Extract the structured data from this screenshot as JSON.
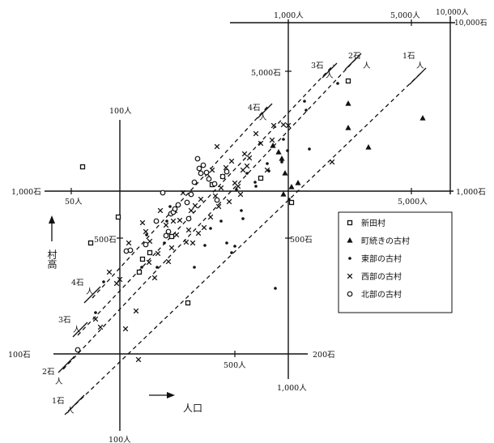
{
  "chart_data": {
    "type": "scatter",
    "axes": {
      "population_ticks": [
        "100人",
        "500人",
        "1,000人",
        "5,000人",
        "10,000人",
        "100人",
        "50人",
        "1,000人",
        "5,000人"
      ],
      "kokudaka_ticks": [
        "100石",
        "500石",
        "1,000石",
        "5,000石",
        "10,000石",
        "100石",
        "200石",
        "500石",
        "1,000石",
        "1,000石"
      ],
      "y_axis_label": "村高",
      "x_axis_label": "人口"
    },
    "ratio_lines": [
      {
        "koku": "1石",
        "per": "人"
      },
      {
        "koku": "2石",
        "per": "人"
      },
      {
        "koku": "3石",
        "per": "人"
      },
      {
        "koku": "4石",
        "per": "人"
      }
    ],
    "legend": [
      {
        "marker": "square",
        "label": "新田村"
      },
      {
        "marker": "triangle",
        "label": "町続きの古村"
      },
      {
        "marker": "dot",
        "label": "東部の古村"
      },
      {
        "marker": "cross",
        "label": "西部の古村"
      },
      {
        "marker": "circle",
        "label": "北部の古村"
      }
    ],
    "series": [
      {
        "name": "新田村",
        "marker": "square",
        "points": [
          [
            102,
            206
          ],
          [
            112,
            300
          ],
          [
            146,
            268
          ],
          [
            172,
            336
          ],
          [
            176,
            320
          ],
          [
            185,
            312
          ],
          [
            212,
            292
          ],
          [
            232,
            374
          ],
          [
            262,
            228
          ],
          [
            322,
            220
          ],
          [
            360,
            250
          ],
          [
            430,
            100
          ]
        ]
      },
      {
        "name": "町続きの古村",
        "marker": "triangle",
        "points": [
          [
            337,
            180
          ],
          [
            344,
            188
          ],
          [
            348,
            196
          ],
          [
            352,
            214
          ],
          [
            350,
            240
          ],
          [
            360,
            231
          ],
          [
            368,
            226
          ],
          [
            430,
            128
          ],
          [
            430,
            158
          ],
          [
            455,
            182
          ],
          [
            522,
            146
          ]
        ]
      },
      {
        "name": "東部の古村",
        "marker": "dot",
        "points": [
          [
            118,
            386
          ],
          [
            128,
            348
          ],
          [
            160,
            308
          ],
          [
            175,
            330
          ],
          [
            181,
            290
          ],
          [
            194,
            330
          ],
          [
            203,
            300
          ],
          [
            206,
            273
          ],
          [
            210,
            255
          ],
          [
            221,
            254
          ],
          [
            240,
            330
          ],
          [
            253,
            303
          ],
          [
            260,
            282
          ],
          [
            273,
            273
          ],
          [
            280,
            300
          ],
          [
            286,
            312
          ],
          [
            290,
            304
          ],
          [
            292,
            234
          ],
          [
            298,
            260
          ],
          [
            300,
            270
          ],
          [
            305,
            214
          ],
          [
            315,
            225
          ],
          [
            316,
            230
          ],
          [
            330,
            202
          ],
          [
            332,
            211
          ],
          [
            340,
            356
          ],
          [
            348,
            200
          ],
          [
            350,
            172
          ],
          [
            355,
            186
          ],
          [
            357,
            246
          ],
          [
            376,
            125
          ],
          [
            378,
            136
          ],
          [
            382,
            184
          ],
          [
            417,
            103
          ]
        ]
      },
      {
        "name": "西部の古村",
        "marker": "cross",
        "points": [
          [
            118,
            394
          ],
          [
            124,
            404
          ],
          [
            135,
            336
          ],
          [
            144,
            350
          ],
          [
            148,
            345
          ],
          [
            155,
            406
          ],
          [
            159,
            300
          ],
          [
            168,
            384
          ],
          [
            171,
            444
          ],
          [
            176,
            275
          ],
          [
            180,
            286
          ],
          [
            184,
            324
          ],
          [
            185,
            298
          ],
          [
            191,
            343
          ],
          [
            195,
            313
          ],
          [
            198,
            260
          ],
          [
            205,
            278
          ],
          [
            208,
            323
          ],
          [
            212,
            306
          ],
          [
            214,
            273
          ],
          [
            216,
            260
          ],
          [
            218,
            290
          ],
          [
            222,
            272
          ],
          [
            226,
            238
          ],
          [
            230,
            299
          ],
          [
            233,
            284
          ],
          [
            236,
            260
          ],
          [
            238,
            300
          ],
          [
            241,
            254
          ],
          [
            245,
            288
          ],
          [
            248,
            246
          ],
          [
            252,
            281
          ],
          [
            256,
            215
          ],
          [
            260,
            268
          ],
          [
            262,
            210
          ],
          [
            266,
            242
          ],
          [
            268,
            181
          ],
          [
            270,
            255
          ],
          [
            273,
            232
          ],
          [
            275,
            218
          ],
          [
            279,
            207
          ],
          [
            283,
            249
          ],
          [
            286,
            199
          ],
          [
            290,
            226
          ],
          [
            294,
            230
          ],
          [
            297,
            240
          ],
          [
            300,
            210
          ],
          [
            302,
            190
          ],
          [
            305,
            205
          ],
          [
            308,
            195
          ],
          [
            316,
            165
          ],
          [
            322,
            177
          ],
          [
            330,
            210
          ],
          [
            336,
            173
          ],
          [
            338,
            155
          ],
          [
            350,
            154
          ],
          [
            356,
            155
          ],
          [
            410,
            200
          ]
        ]
      },
      {
        "name": "北部の古村",
        "marker": "circle",
        "points": [
          [
            96,
            432
          ],
          [
            156,
            310
          ],
          [
            161,
            309
          ],
          [
            180,
            302
          ],
          [
            193,
            273
          ],
          [
            201,
            238
          ],
          [
            205,
            291
          ],
          [
            208,
            286
          ],
          [
            211,
            264
          ],
          [
            214,
            262
          ],
          [
            216,
            258
          ],
          [
            220,
            253
          ],
          [
            231,
            250
          ],
          [
            233,
            270
          ],
          [
            236,
            240
          ],
          [
            240,
            225
          ],
          [
            244,
            196
          ],
          [
            246,
            208
          ],
          [
            248,
            214
          ],
          [
            251,
            204
          ],
          [
            255,
            213
          ],
          [
            258,
            221
          ],
          [
            265,
            227
          ],
          [
            268,
            247
          ],
          [
            275,
            218
          ],
          [
            280,
            212
          ]
        ]
      }
    ]
  }
}
